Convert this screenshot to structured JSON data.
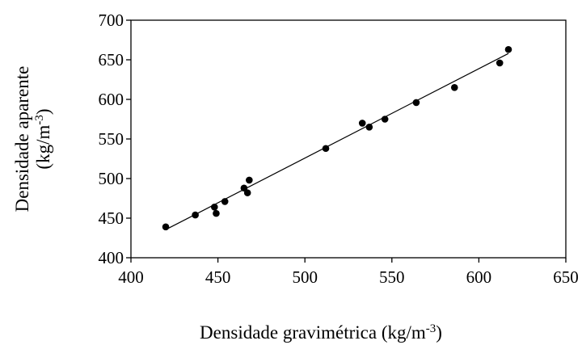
{
  "chart_data": {
    "type": "scatter",
    "xlabel": "Densidade gravimétrica (kg/m",
    "xlabel_sup": "-3",
    "xlabel_end": ")",
    "ylabel_line1": "Densidade aparente",
    "ylabel_line2": "(kg/m",
    "ylabel_sup": "-3",
    "ylabel_end": ")",
    "xlim": [
      400,
      650
    ],
    "ylim": [
      400,
      700
    ],
    "x_ticks": [
      400,
      450,
      500,
      550,
      600,
      650
    ],
    "y_ticks": [
      400,
      450,
      500,
      550,
      600,
      650,
      700
    ],
    "grid": false,
    "legend": "none",
    "points": [
      {
        "x": 420,
        "y": 439
      },
      {
        "x": 437,
        "y": 454
      },
      {
        "x": 448,
        "y": 464
      },
      {
        "x": 449,
        "y": 456
      },
      {
        "x": 454,
        "y": 471
      },
      {
        "x": 465,
        "y": 488
      },
      {
        "x": 467,
        "y": 482
      },
      {
        "x": 468,
        "y": 498
      },
      {
        "x": 512,
        "y": 538
      },
      {
        "x": 533,
        "y": 570
      },
      {
        "x": 537,
        "y": 565
      },
      {
        "x": 546,
        "y": 575
      },
      {
        "x": 564,
        "y": 596
      },
      {
        "x": 586,
        "y": 615
      },
      {
        "x": 612,
        "y": 646
      },
      {
        "x": 617,
        "y": 663
      }
    ],
    "trendline": {
      "x": [
        420,
        617
      ],
      "y": [
        435.5,
        658
      ]
    },
    "colors": {
      "marker": "#000000",
      "line": "#000000",
      "axis": "#000000"
    }
  }
}
